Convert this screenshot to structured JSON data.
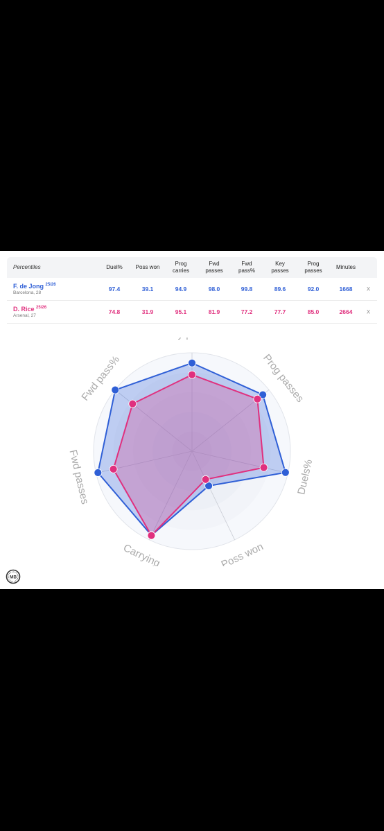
{
  "table": {
    "corner_label": "Percentiles",
    "columns": [
      {
        "line1": "Duel%",
        "line2": ""
      },
      {
        "line1": "Poss won",
        "line2": ""
      },
      {
        "line1": "Prog",
        "line2": "carries"
      },
      {
        "line1": "Fwd",
        "line2": "passes"
      },
      {
        "line1": "Fwd",
        "line2": "pass%"
      },
      {
        "line1": "Key",
        "line2": "passes"
      },
      {
        "line1": "Prog",
        "line2": "passes"
      },
      {
        "line1": "Minutes",
        "line2": ""
      }
    ],
    "players": [
      {
        "name": "F. de Jong",
        "season": "25/26",
        "club": "Barcelona, 28",
        "color": "#2f5fd6",
        "values": [
          "97.4",
          "39.1",
          "94.9",
          "98.0",
          "99.8",
          "89.6",
          "92.0",
          "1668"
        ],
        "remove": "x"
      },
      {
        "name": "D. Rice",
        "season": "25/26",
        "club": "Arsenal, 27",
        "color": "#e0307e",
        "values": [
          "74.8",
          "31.9",
          "95.1",
          "81.9",
          "77.2",
          "77.7",
          "85.0",
          "2664"
        ],
        "remove": "x"
      }
    ]
  },
  "chart_data": {
    "type": "radar",
    "axes": [
      "Key passes",
      "Prog passes",
      "Duels%",
      "Poss won",
      "Carrying",
      "Fwd passes",
      "Fwd pass%"
    ],
    "range": [
      0,
      100
    ],
    "series": [
      {
        "name": "F. de Jong",
        "color": "#2f5fd6",
        "values": [
          89.6,
          92.0,
          97.4,
          39.1,
          94.9,
          98.0,
          99.8
        ]
      },
      {
        "name": "D. Rice",
        "color": "#e0307e",
        "values": [
          77.7,
          85.0,
          74.8,
          31.9,
          95.1,
          81.9,
          77.2
        ]
      }
    ]
  },
  "logo": {
    "text": "MB"
  }
}
